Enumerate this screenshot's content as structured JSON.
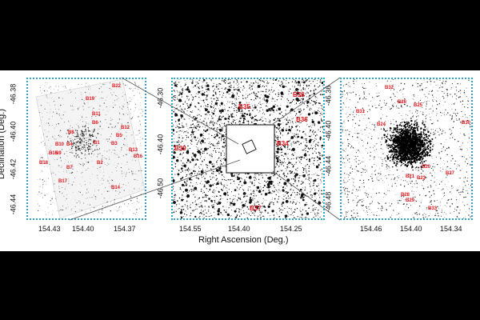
{
  "axes": {
    "xlabel": "Right Ascension (Deg.)",
    "ylabel": "Declination (Deg.)"
  },
  "panels": [
    {
      "id": "left",
      "xticks": [
        "154.43",
        "154.40",
        "154.37"
      ],
      "yticks": [
        "-46.38",
        "-46.40",
        "-46.42",
        "-46.44"
      ],
      "labels": [
        "B22",
        "B19",
        "B11",
        "B6",
        "B12",
        "B8",
        "B5",
        "B1",
        "B3",
        "B10",
        "B4",
        "B13",
        "B15",
        "B9",
        "B16",
        "B18",
        "B2",
        "B7",
        "B17",
        "B14"
      ]
    },
    {
      "id": "middle",
      "xticks": [
        "154.55",
        "154.40",
        "154.25"
      ],
      "yticks": [
        "-46.30",
        "-46.40",
        "-46.50"
      ],
      "labels": [
        "B38",
        "B35",
        "B36",
        "B34",
        "B39",
        "B37"
      ]
    },
    {
      "id": "right",
      "xticks": [
        "154.46",
        "154.40",
        "154.34"
      ],
      "yticks": [
        "-46.36",
        "-46.40",
        "-46.44",
        "-46.48"
      ],
      "labels": [
        "B32",
        "B26",
        "B25",
        "B31",
        "B24",
        "B30",
        "B20",
        "B21",
        "B23",
        "B27",
        "B28",
        "B29",
        "B33"
      ]
    }
  ]
}
